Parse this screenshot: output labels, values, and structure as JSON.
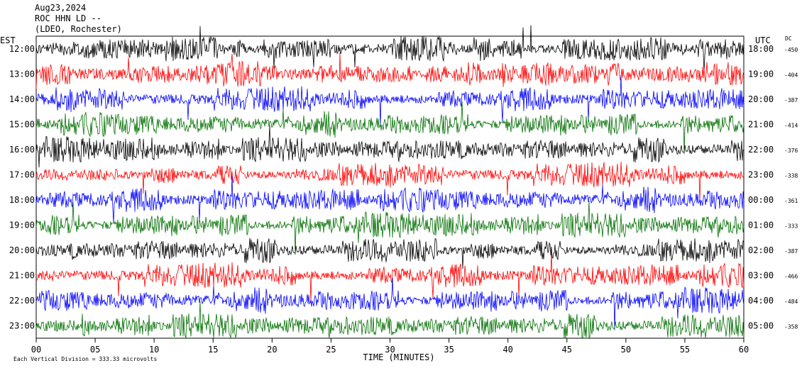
{
  "chart_data": {
    "type": "line",
    "header": {
      "date": "Aug23,2024",
      "station": "ROC HHN LD --",
      "network": "(LDEO, Rochester)"
    },
    "left_axis_label": "EST",
    "right_axis_label": "UTC",
    "dc_label": "DC",
    "xlabel": "TIME (MINUTES)",
    "xlim": [
      0,
      60
    ],
    "x_ticks": [
      "00",
      "05",
      "10",
      "15",
      "20",
      "25",
      "30",
      "35",
      "40",
      "45",
      "50",
      "55",
      "60"
    ],
    "vertical_scale_text": "Each Vertical Division =  333.33 microvolts",
    "rows": [
      {
        "est": "12:00",
        "utc": "18:00",
        "dc": "-450",
        "color": "#000000"
      },
      {
        "est": "13:00",
        "utc": "19:00",
        "dc": "-404",
        "color": "#ff0000"
      },
      {
        "est": "14:00",
        "utc": "20:00",
        "dc": "-387",
        "color": "#0000ff"
      },
      {
        "est": "15:00",
        "utc": "21:00",
        "dc": "-414",
        "color": "#007000"
      },
      {
        "est": "16:00",
        "utc": "22:00",
        "dc": "-376",
        "color": "#000000"
      },
      {
        "est": "17:00",
        "utc": "23:00",
        "dc": "-338",
        "color": "#ff0000"
      },
      {
        "est": "18:00",
        "utc": "00:00",
        "dc": "-361",
        "color": "#0000ff"
      },
      {
        "est": "19:00",
        "utc": "01:00",
        "dc": "-333",
        "color": "#007000"
      },
      {
        "est": "20:00",
        "utc": "02:00",
        "dc": "-387",
        "color": "#000000"
      },
      {
        "est": "21:00",
        "utc": "03:00",
        "dc": "-466",
        "color": "#ff0000"
      },
      {
        "est": "22:00",
        "utc": "04:00",
        "dc": "-484",
        "color": "#0000ff"
      },
      {
        "est": "23:00",
        "utc": "05:00",
        "dc": "-358",
        "color": "#007000"
      }
    ]
  }
}
